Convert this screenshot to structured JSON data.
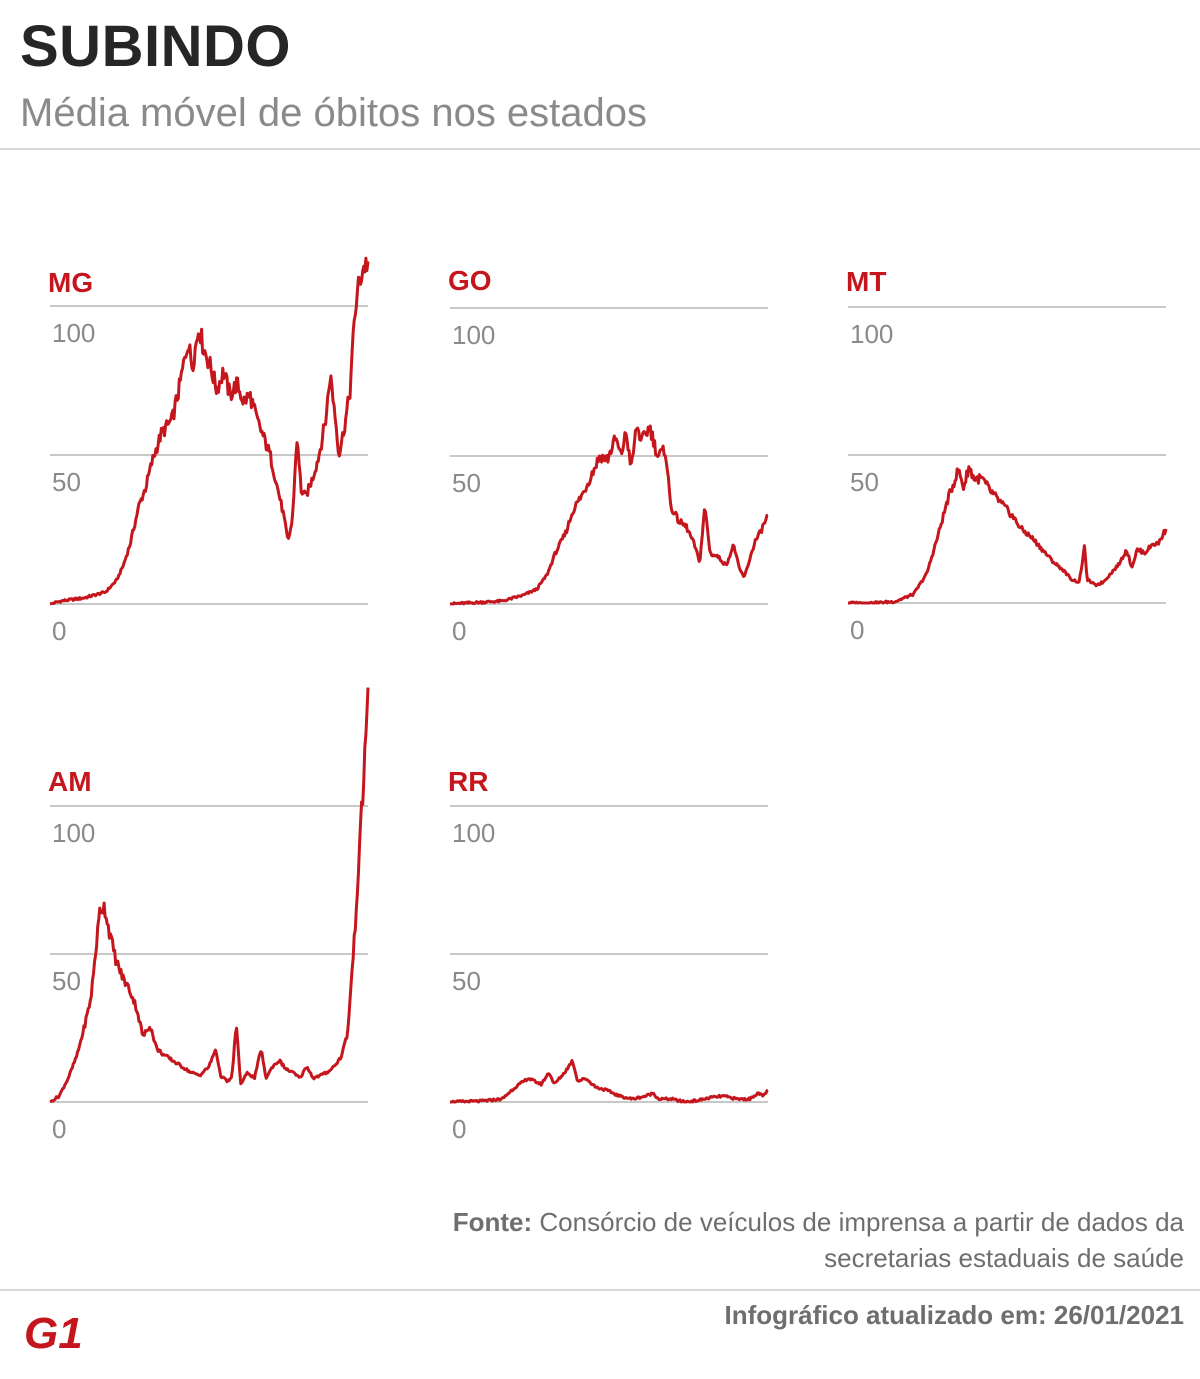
{
  "header": {
    "title": "SUBINDO",
    "subtitle": "Média móvel de óbitos nos estados"
  },
  "footer": {
    "source_label": "Fonte:",
    "source_text": "Consórcio de veículos de imprensa a partir de dados da secretarias estaduais de saúde",
    "updated_text": "Infográfico atualizado em: 26/01/2021",
    "logo_text": "G1"
  },
  "colors": {
    "line": "#c4161c",
    "label": "#c4161c",
    "grid": "#c8c8c8",
    "tick": "#8a8a8a"
  },
  "chart_data": [
    {
      "type": "line",
      "name": "MG",
      "ylim": [
        0,
        100
      ],
      "yticks": [
        0,
        50,
        100
      ],
      "anchors": [
        [
          0,
          0
        ],
        [
          5,
          1
        ],
        [
          10,
          1.5
        ],
        [
          15,
          2
        ],
        [
          20,
          3
        ],
        [
          25,
          4
        ],
        [
          30,
          8
        ],
        [
          33,
          13
        ],
        [
          36,
          20
        ],
        [
          40,
          33
        ],
        [
          43,
          39
        ],
        [
          46,
          48
        ],
        [
          50,
          57
        ],
        [
          55,
          62
        ],
        [
          58,
          72
        ],
        [
          62,
          88
        ],
        [
          64,
          80
        ],
        [
          67,
          93
        ],
        [
          69,
          86
        ],
        [
          72,
          80
        ],
        [
          75,
          72
        ],
        [
          78,
          78
        ],
        [
          81,
          70
        ],
        [
          84,
          74
        ],
        [
          87,
          68
        ],
        [
          90,
          70
        ],
        [
          93,
          62
        ],
        [
          96,
          56
        ],
        [
          99,
          50
        ],
        [
          102,
          40
        ],
        [
          105,
          30
        ],
        [
          107,
          21
        ],
        [
          109,
          28
        ],
        [
          111,
          56
        ],
        [
          113,
          38
        ],
        [
          115,
          36
        ],
        [
          118,
          42
        ],
        [
          121,
          50
        ],
        [
          124,
          62
        ],
        [
          126,
          77
        ],
        [
          128,
          65
        ],
        [
          130,
          50
        ],
        [
          133,
          62
        ],
        [
          135,
          72
        ],
        [
          137,
          97
        ],
        [
          139,
          108
        ],
        [
          141,
          113
        ],
        [
          143,
          115
        ]
      ]
    },
    {
      "type": "line",
      "name": "GO",
      "ylim": [
        0,
        100
      ],
      "yticks": [
        0,
        50,
        100
      ],
      "anchors": [
        [
          0,
          0
        ],
        [
          10,
          0.5
        ],
        [
          20,
          1
        ],
        [
          28,
          3
        ],
        [
          33,
          5
        ],
        [
          37,
          10
        ],
        [
          40,
          17
        ],
        [
          44,
          24
        ],
        [
          47,
          32
        ],
        [
          51,
          38
        ],
        [
          54,
          44
        ],
        [
          57,
          50
        ],
        [
          60,
          49
        ],
        [
          63,
          56
        ],
        [
          65,
          50
        ],
        [
          67,
          58
        ],
        [
          69,
          46
        ],
        [
          71,
          60
        ],
        [
          73,
          55
        ],
        [
          76,
          60
        ],
        [
          79,
          50
        ],
        [
          82,
          52
        ],
        [
          84,
          33
        ],
        [
          87,
          28
        ],
        [
          90,
          26
        ],
        [
          93,
          20
        ],
        [
          95,
          14
        ],
        [
          97,
          33
        ],
        [
          99,
          17
        ],
        [
          102,
          16
        ],
        [
          105,
          13
        ],
        [
          108,
          20
        ],
        [
          110,
          12
        ],
        [
          112,
          9
        ],
        [
          114,
          15
        ],
        [
          116,
          21
        ],
        [
          118,
          24
        ],
        [
          121,
          30
        ]
      ]
    },
    {
      "type": "line",
      "name": "MT",
      "ylim": [
        0,
        100
      ],
      "yticks": [
        0,
        50,
        100
      ],
      "anchors": [
        [
          0,
          0
        ],
        [
          10,
          0
        ],
        [
          18,
          0.5
        ],
        [
          25,
          3
        ],
        [
          30,
          10
        ],
        [
          34,
          22
        ],
        [
          38,
          35
        ],
        [
          42,
          45
        ],
        [
          44,
          39
        ],
        [
          46,
          46
        ],
        [
          48,
          42
        ],
        [
          51,
          42
        ],
        [
          54,
          38
        ],
        [
          58,
          34
        ],
        [
          62,
          30
        ],
        [
          66,
          25
        ],
        [
          70,
          22
        ],
        [
          74,
          18
        ],
        [
          78,
          14
        ],
        [
          82,
          11
        ],
        [
          85,
          8
        ],
        [
          88,
          7
        ],
        [
          90,
          19
        ],
        [
          91,
          8
        ],
        [
          94,
          6
        ],
        [
          97,
          7
        ],
        [
          100,
          10
        ],
        [
          103,
          13
        ],
        [
          106,
          18
        ],
        [
          108,
          12
        ],
        [
          110,
          18
        ],
        [
          113,
          17
        ],
        [
          116,
          20
        ],
        [
          118,
          20
        ],
        [
          121,
          25
        ]
      ]
    },
    {
      "type": "line",
      "name": "AM",
      "ylim": [
        0,
        100
      ],
      "yticks": [
        0,
        50,
        100
      ],
      "anchors": [
        [
          0,
          0
        ],
        [
          4,
          2
        ],
        [
          8,
          8
        ],
        [
          12,
          16
        ],
        [
          15,
          25
        ],
        [
          18,
          35
        ],
        [
          20,
          50
        ],
        [
          22,
          65
        ],
        [
          24,
          66
        ],
        [
          26,
          58
        ],
        [
          29,
          48
        ],
        [
          32,
          42
        ],
        [
          35,
          38
        ],
        [
          38,
          32
        ],
        [
          41,
          22
        ],
        [
          44,
          26
        ],
        [
          47,
          18
        ],
        [
          50,
          16
        ],
        [
          54,
          14
        ],
        [
          58,
          12
        ],
        [
          62,
          10
        ],
        [
          66,
          9
        ],
        [
          70,
          12
        ],
        [
          73,
          18
        ],
        [
          75,
          9
        ],
        [
          78,
          7
        ],
        [
          80,
          8
        ],
        [
          82,
          26
        ],
        [
          84,
          6
        ],
        [
          87,
          10
        ],
        [
          90,
          8
        ],
        [
          93,
          18
        ],
        [
          95,
          8
        ],
        [
          98,
          12
        ],
        [
          101,
          14
        ],
        [
          104,
          11
        ],
        [
          107,
          10
        ],
        [
          110,
          8
        ],
        [
          113,
          12
        ],
        [
          116,
          8
        ],
        [
          119,
          9
        ],
        [
          122,
          10
        ],
        [
          125,
          12
        ],
        [
          128,
          15
        ],
        [
          131,
          23
        ],
        [
          134,
          55
        ],
        [
          136,
          82
        ],
        [
          138,
          108
        ],
        [
          140,
          140
        ]
      ]
    },
    {
      "type": "line",
      "name": "RR",
      "ylim": [
        0,
        100
      ],
      "yticks": [
        0,
        50,
        100
      ],
      "anchors": [
        [
          0,
          0
        ],
        [
          12,
          0.3
        ],
        [
          20,
          1
        ],
        [
          25,
          5
        ],
        [
          30,
          8
        ],
        [
          35,
          6
        ],
        [
          38,
          10
        ],
        [
          40,
          6
        ],
        [
          44,
          10
        ],
        [
          47,
          14
        ],
        [
          49,
          7
        ],
        [
          52,
          8
        ],
        [
          56,
          5
        ],
        [
          60,
          4
        ],
        [
          65,
          2
        ],
        [
          70,
          1
        ],
        [
          75,
          2
        ],
        [
          78,
          3
        ],
        [
          80,
          1
        ],
        [
          85,
          1
        ],
        [
          90,
          0
        ],
        [
          95,
          0.5
        ],
        [
          100,
          1.5
        ],
        [
          105,
          2
        ],
        [
          110,
          1
        ],
        [
          115,
          1
        ],
        [
          118,
          3
        ],
        [
          120,
          2
        ],
        [
          122,
          4
        ]
      ]
    }
  ]
}
